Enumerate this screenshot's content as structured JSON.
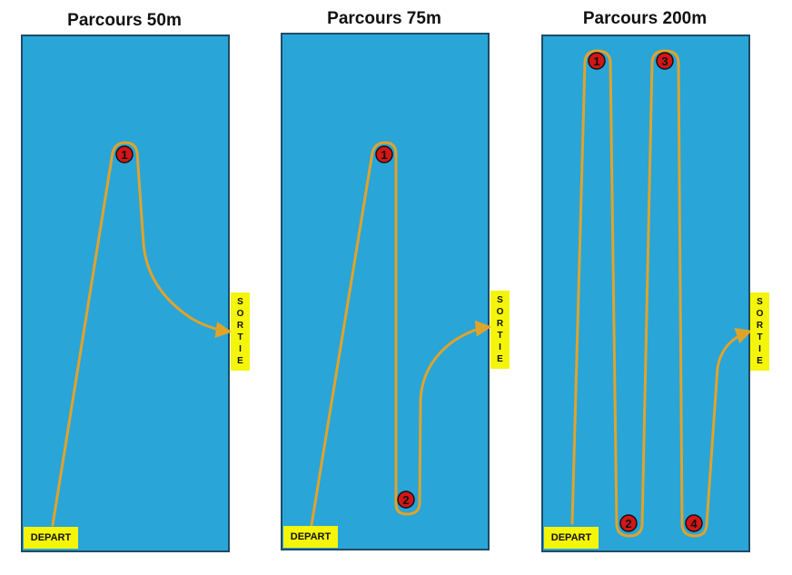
{
  "colors": {
    "water": "#29a5d8",
    "border": "#1f4b66",
    "label_bg": "#f5f50a",
    "path": "#e0a32a",
    "marker": "#d31616"
  },
  "courses": [
    {
      "title": "Parcours 50m",
      "depart": "DEPART",
      "sortie": "SORTIE",
      "markers": [
        "1"
      ]
    },
    {
      "title": "Parcours 75m",
      "depart": "DEPART",
      "sortie": "SORTIE",
      "markers": [
        "1",
        "2"
      ]
    },
    {
      "title": "Parcours 200m",
      "depart": "DEPART",
      "sortie": "SORTIE",
      "markers": [
        "1",
        "2",
        "3",
        "4"
      ]
    }
  ]
}
